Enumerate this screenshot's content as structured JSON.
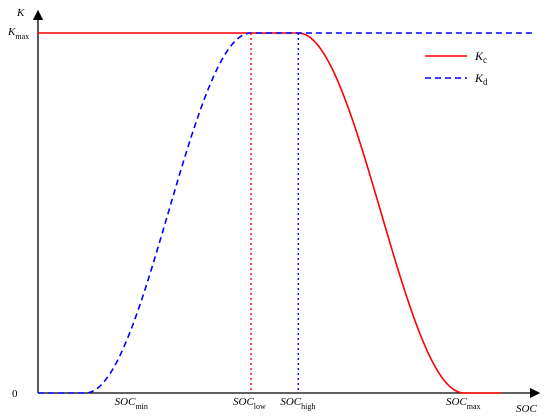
{
  "chart_data": {
    "type": "line",
    "xlabel": "SOC",
    "ylabel": "K",
    "y_ticks": [
      {
        "base": "K",
        "sub": "max",
        "value": 1
      },
      {
        "base": "0",
        "sub": "",
        "value": 0
      }
    ],
    "x_ticks": [
      {
        "base": "SOC",
        "sub": "min",
        "value": 0.2
      },
      {
        "base": "SOC",
        "sub": "low",
        "value": 0.45
      },
      {
        "base": "SOC",
        "sub": "high",
        "value": 0.55
      },
      {
        "base": "SOC",
        "sub": "max",
        "value": 0.9
      }
    ],
    "xlim": [
      0,
      1.05
    ],
    "ylim": [
      0,
      1.05
    ],
    "series": [
      {
        "name": "Kc",
        "name_base": "K",
        "name_sub": "c",
        "color": "#ff0000",
        "style": "solid",
        "points": [
          [
            0,
            1
          ],
          [
            0.55,
            1
          ],
          [
            0.9,
            0
          ],
          [
            0.98,
            0
          ]
        ],
        "shape": "flat-then-smooth-decrease"
      },
      {
        "name": "Kd",
        "name_base": "K",
        "name_sub": "d",
        "color": "#0000ff",
        "style": "dashed",
        "points": [
          [
            0,
            0
          ],
          [
            0.1,
            0
          ],
          [
            0.45,
            1
          ],
          [
            1.05,
            1
          ]
        ],
        "shape": "flat-then-smooth-increase-then-flat"
      }
    ],
    "reference_lines": [
      {
        "x": 0.45,
        "color": "#ff0000",
        "style": "dotted"
      },
      {
        "x": 0.55,
        "color": "#0000ff",
        "style": "dotted"
      }
    ],
    "legend_position": "top-right",
    "grid": false
  }
}
